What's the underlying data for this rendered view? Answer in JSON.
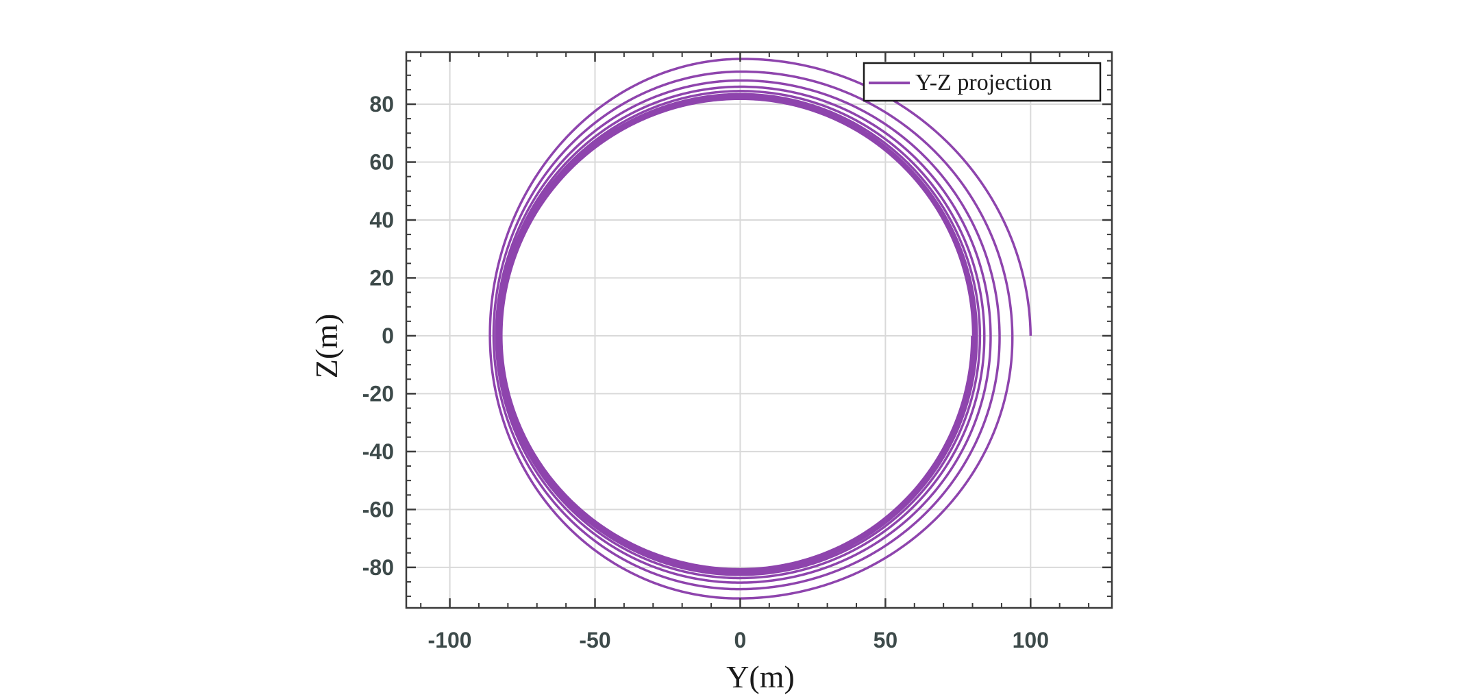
{
  "chart_data": {
    "type": "line",
    "xlabel": "Y(m)",
    "ylabel": "Z(m)",
    "xlim": [
      -115,
      128
    ],
    "ylim": [
      -94,
      98
    ],
    "xticks": [
      -100,
      -50,
      0,
      50,
      100
    ],
    "yticks": [
      -80,
      -60,
      -40,
      -20,
      0,
      20,
      40,
      60,
      80
    ],
    "xtick_labels": [
      "-100",
      "-50",
      "0",
      "50",
      "100"
    ],
    "ytick_labels": [
      "-80",
      "-60",
      "-40",
      "-20",
      "0",
      "20",
      "40",
      "60",
      "80"
    ],
    "grid": true,
    "minor_ticks": true,
    "legend_position": "top-right",
    "series": [
      {
        "name": "Y-Z projection",
        "color": "#8e44ad",
        "trajectory": {
          "start": [
            100,
            0
          ],
          "turns": 9,
          "radius_y_start": 100,
          "radius_y_end": 79,
          "radius_z_top_start": 97,
          "radius_z_top_end": 81,
          "radius_z_bottom_start": 94,
          "radius_z_bottom_end": 80,
          "radius_y_left_start": 87,
          "radius_y_left_end": 82
        }
      }
    ]
  }
}
